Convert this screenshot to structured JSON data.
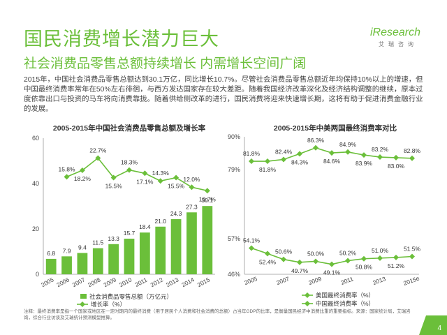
{
  "header": {
    "title": "国民消费增长潜力巨大",
    "subtitle": "社会消费品零售总额持续增长  内需增长空间广阔",
    "logo_text": "iResearch",
    "logo_sub": "艾瑞咨询"
  },
  "body_text": "2015年，中国社会消费品零售总额达到30.1万亿，同比增长10.7%。尽管社会消费品零售总额近年均保持10%以上的增速，但中国最终消费率常年在50%左右徘徊，与西方发达国家存在较大差距。随着我国经济改革深化及经济结构调整的继续，原本过度依靠出口与投资的马车将向消费靠拢。随着供给侧改革的进行，国民消费将迎来快速增长期，这将有助于促进消费金融行业的发展。",
  "chart_data": [
    {
      "type": "bar+line",
      "title": "2005-2015年中国社会消费品零售总额及增长率",
      "categories": [
        "2005",
        "2006",
        "2007",
        "2008",
        "2009",
        "2010",
        "2011",
        "2012",
        "2013",
        "2014",
        "2015"
      ],
      "bar_series": {
        "name": "社会消费品零售总额（万亿元）",
        "values": [
          6.8,
          7.9,
          9.4,
          11.5,
          13.3,
          15.7,
          18.4,
          21.0,
          24.3,
          27.3,
          30.1
        ],
        "labels": [
          "6.8",
          "7.9",
          "9.4",
          "11.5",
          "13.3",
          "15.7",
          "18.4",
          "21.0",
          "24.3",
          "27.3",
          "30.1"
        ]
      },
      "line_series": {
        "name": "增长率（%）",
        "values": [
          15.8,
          18.2,
          22.7,
          15.5,
          18.3,
          17.1,
          14.3,
          15.5,
          12.0,
          10.7
        ],
        "labels": [
          "15.8%",
          "18.2%",
          "22.7%",
          "15.5%",
          "18.3%",
          "17.1%",
          "14.3%",
          "15.5%",
          "12.0%",
          "10.7%"
        ],
        "x_categories": [
          "2006",
          "2007",
          "2008",
          "2009",
          "2010",
          "2011",
          "2012",
          "2013",
          "2014",
          "2015"
        ],
        "label_pos": [
          "above",
          "below",
          "above",
          "below",
          "above",
          "below",
          "above",
          "below",
          "above",
          "below"
        ]
      },
      "yaxis": {
        "ticks": [
          "0",
          "20",
          "40",
          "60"
        ],
        "range": [
          0,
          60
        ]
      },
      "line_range": [
        -20,
        30
      ],
      "colors": {
        "bar": "#6bbf3a",
        "line": "#6bbf3a"
      }
    },
    {
      "type": "line",
      "title": "2005-2015年中美两国最终消费率对比",
      "categories": [
        "2005",
        "2006",
        "2007",
        "2008",
        "2009",
        "2010",
        "2011",
        "2012",
        "2013",
        "2014",
        "2015e"
      ],
      "x_tick_labels": [
        "2005",
        "2007",
        "2009",
        "2011",
        "2013",
        "2015e"
      ],
      "series": [
        {
          "name": "美国最终消费率（%）",
          "values": [
            81.8,
            81.8,
            82.4,
            84.3,
            86.3,
            84.6,
            84.9,
            83.9,
            83.2,
            83.0,
            82.8
          ],
          "labels": [
            "81.8%",
            "81.8%",
            "82.4%",
            "84.3%",
            "86.3%",
            "84.6%",
            "84.9%",
            "83.9%",
            "83.2%",
            "83.0%",
            "82.8%"
          ]
        },
        {
          "name": "中国最终消费率（%）",
          "values": [
            54.1,
            52.4,
            50.6,
            49.7,
            50.0,
            49.1,
            50.2,
            50.8,
            51.0,
            51.2,
            51.5
          ],
          "labels": [
            "54.1%",
            "52.4%",
            "50.6%",
            "49.7%",
            "50.0%",
            "49.1%",
            "50.2%",
            "50.8%",
            "51.0%",
            "51.2%",
            "51.5%"
          ]
        }
      ],
      "yaxis": {
        "ticks": [
          "46%",
          "57%",
          "79%",
          "90%"
        ]
      },
      "colors": {
        "line": "#6bbf3a"
      }
    }
  ],
  "footnote": "注释：最终消费率是指一个国家或地区在一定时期内的最终消费（用于居民个人消费和社会消费的总额）占当年GDP的比率，是衡量国民经济中消费比重的重要指标。来源：国家统计局，艾瑞咨询，综合行业访谈及艾瑞统计预测模型推算。",
  "page_number": "4"
}
